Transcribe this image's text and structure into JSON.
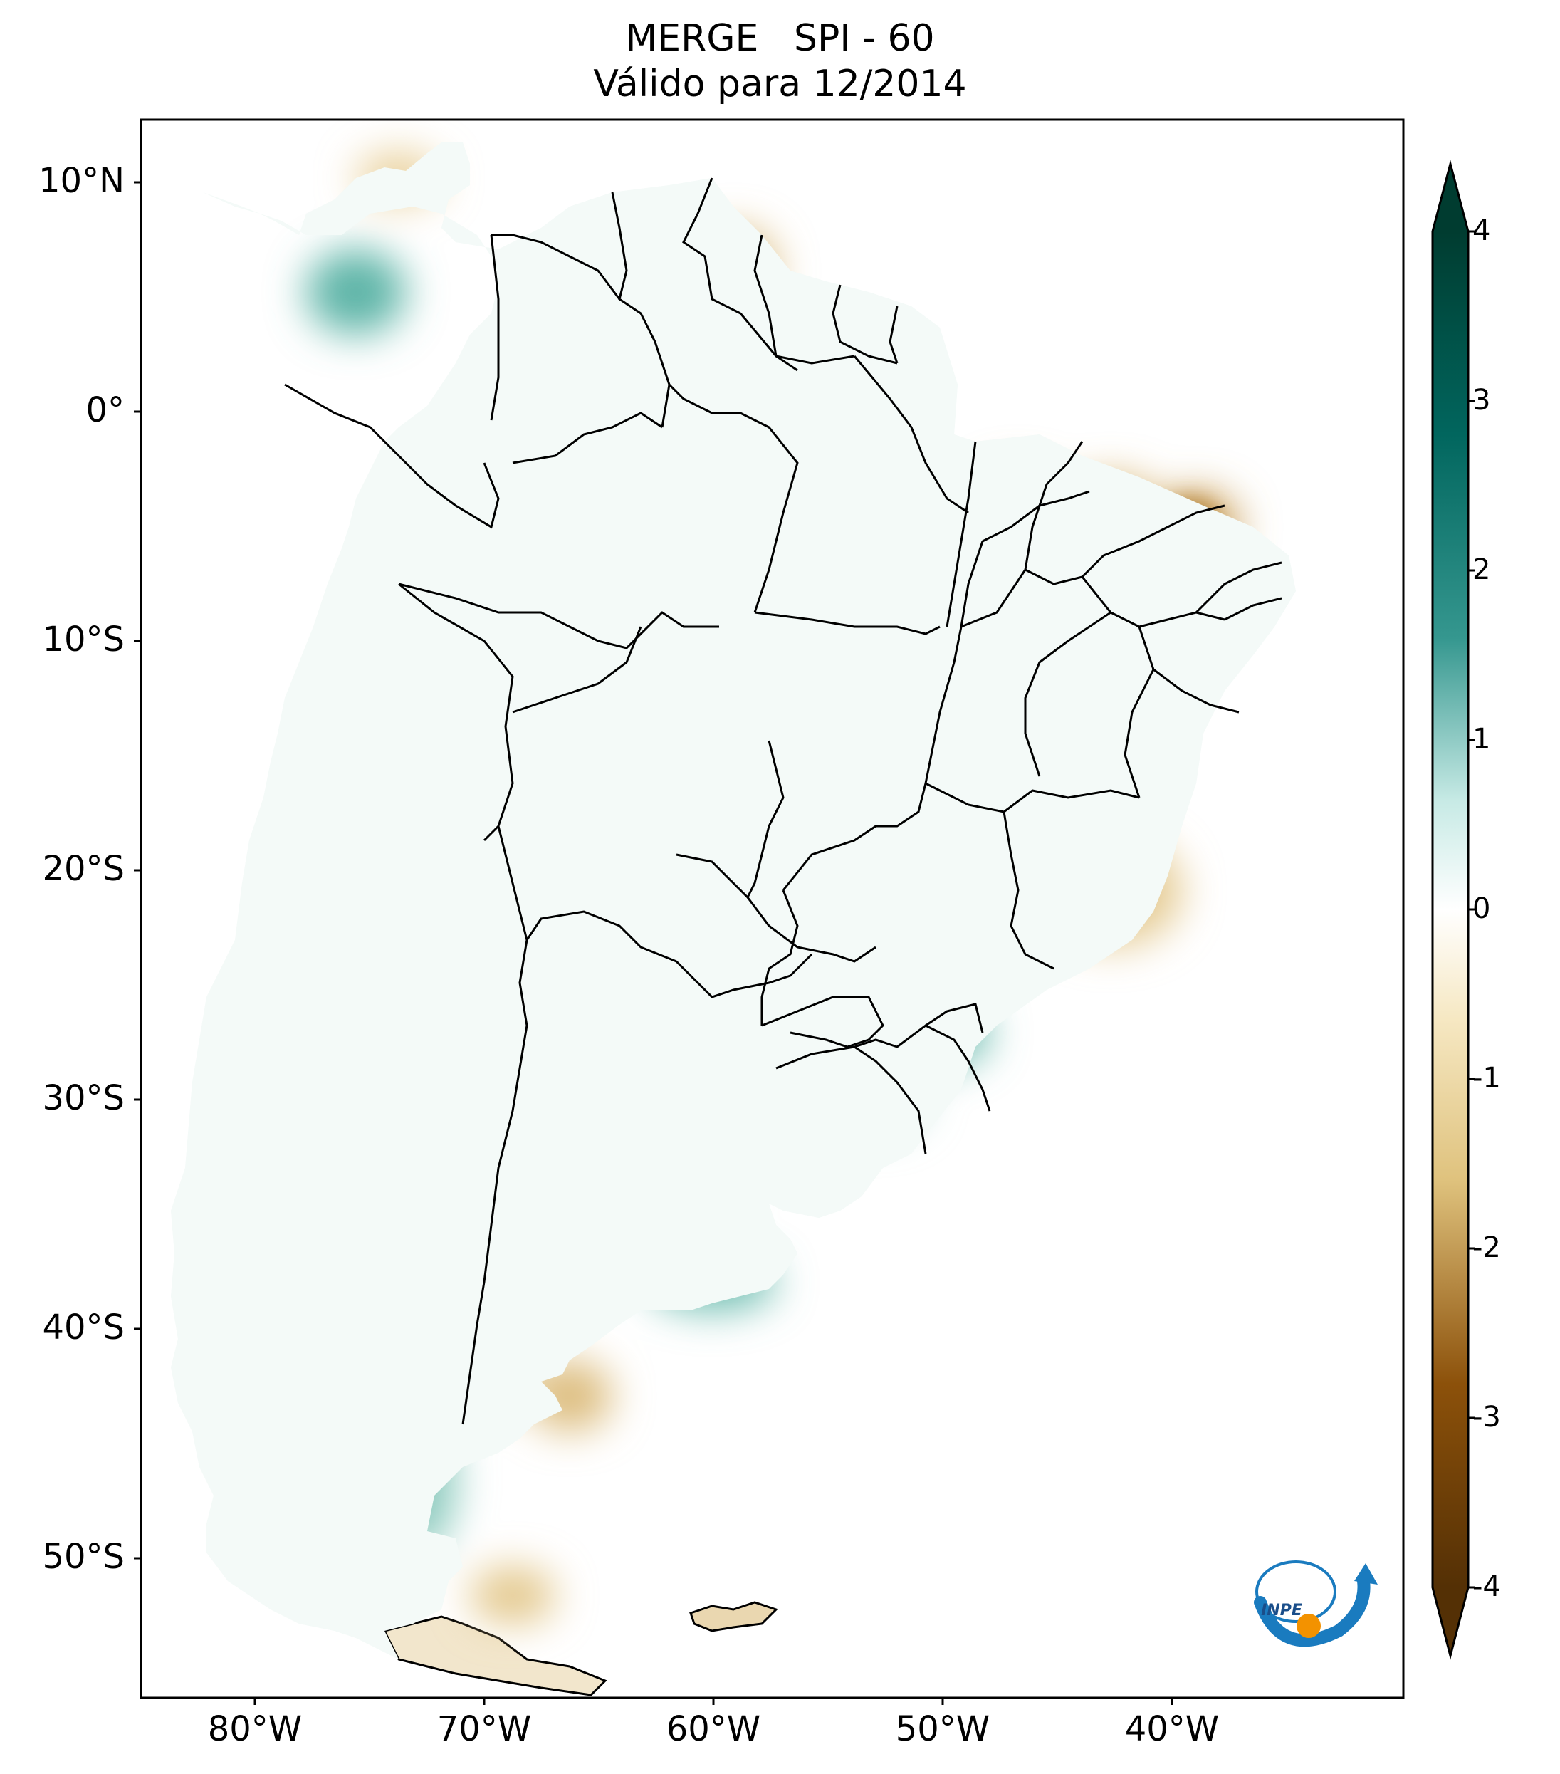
{
  "title": {
    "line1": "MERGE   SPI - 60",
    "line2": "Válido para 12/2014"
  },
  "latitude_labels": [
    "10°N",
    "0°",
    "10°S",
    "20°S",
    "30°S",
    "40°S",
    "50°S"
  ],
  "longitude_labels": [
    "80°W",
    "70°W",
    "60°W",
    "50°W",
    "40°W"
  ],
  "colorbar": {
    "labels": [
      "4",
      "3",
      "2",
      "1",
      "0",
      "-1",
      "-2",
      "-3",
      "-4"
    ],
    "range": [
      -4,
      4
    ],
    "colors": {
      "wet_max": "#003c30",
      "wet": "#35978f",
      "wet_light": "#c7eae5",
      "neutral": "#ffffff",
      "dry_light": "#f6e8c3",
      "dry": "#bf812d",
      "dry_max": "#543005"
    }
  },
  "logo": {
    "text": "INPE",
    "colors": {
      "blue": "#1a7bbf",
      "orange": "#f39200"
    }
  },
  "chart_data": {
    "type": "heatmap",
    "title": "MERGE   SPI - 60",
    "subtitle": "Válido para 12/2014",
    "xlabel": "",
    "ylabel": "",
    "region": "South America",
    "lon_range": [
      -85,
      -30
    ],
    "lat_range": [
      -56,
      13
    ],
    "color_range": [
      -4,
      4
    ],
    "colorbar_ticks": [
      -4,
      -3,
      -2,
      -1,
      0,
      1,
      2,
      3,
      4
    ]
  }
}
